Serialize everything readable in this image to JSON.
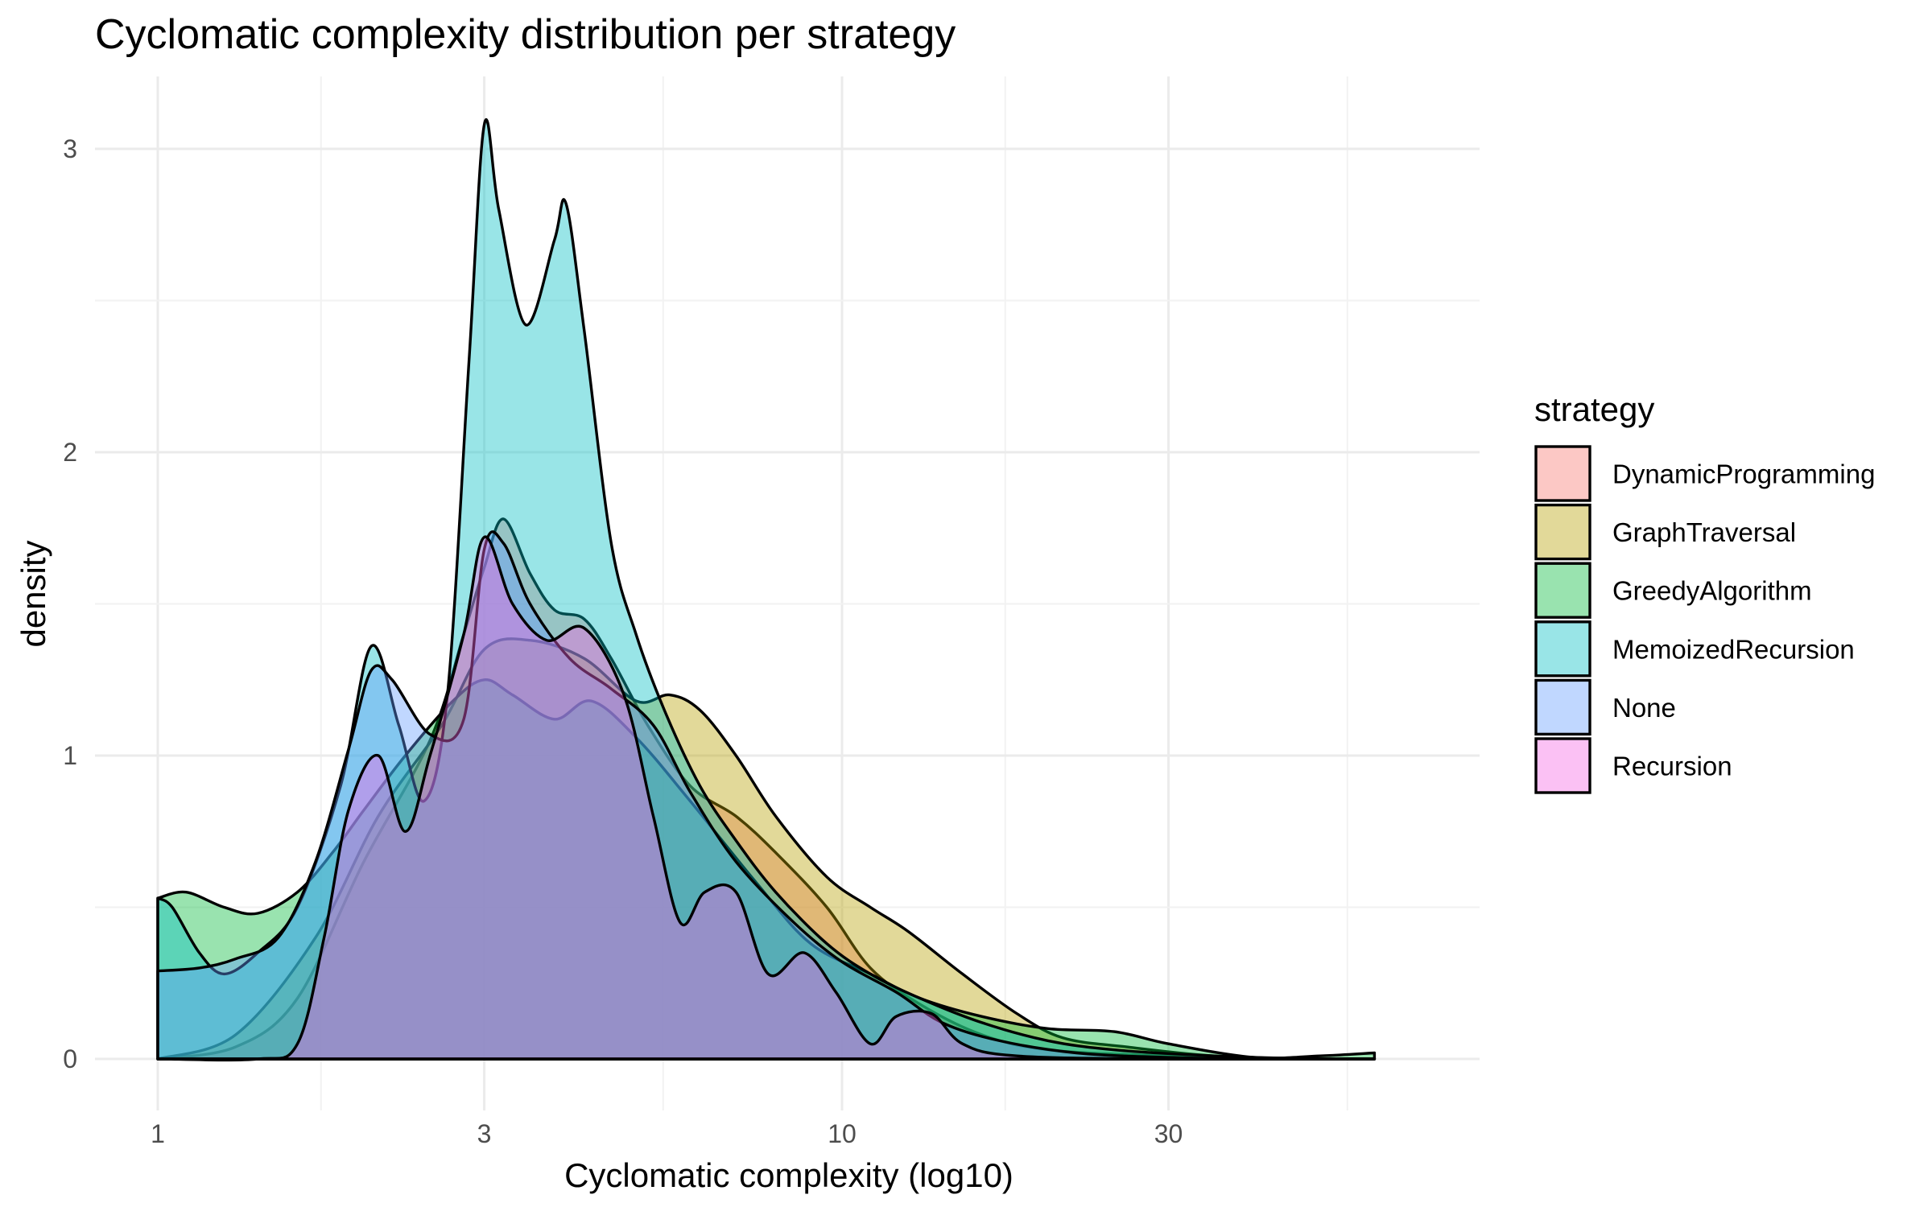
{
  "chart_data": {
    "type": "area",
    "subtype": "density",
    "title": "Cyclomatic complexity distribution per strategy",
    "xlabel": "Cyclomatic complexity (log10)",
    "ylabel": "density",
    "x_scale": "log10",
    "xlim": [
      1,
      60
    ],
    "ylim": [
      0,
      3.2
    ],
    "x_ticks": [
      1,
      3,
      10,
      30
    ],
    "x_tick_labels": [
      "1",
      "3",
      "10",
      "30"
    ],
    "y_ticks": [
      0,
      1,
      2,
      3
    ],
    "y_tick_labels": [
      "0",
      "1",
      "2",
      "3"
    ],
    "grid": true,
    "legend": {
      "title": "strategy",
      "position": "right"
    },
    "series": [
      {
        "name": "DynamicProgramming",
        "color": "#F8766D",
        "points": [
          [
            1,
            0
          ],
          [
            1.3,
            0.04
          ],
          [
            1.6,
            0.2
          ],
          [
            2.0,
            0.65
          ],
          [
            2.5,
            1.05
          ],
          [
            2.8,
            1.4
          ],
          [
            3.0,
            1.62
          ],
          [
            3.2,
            1.78
          ],
          [
            3.5,
            1.6
          ],
          [
            3.8,
            1.48
          ],
          [
            4.2,
            1.45
          ],
          [
            4.6,
            1.32
          ],
          [
            5.2,
            1.1
          ],
          [
            6.0,
            0.9
          ],
          [
            7.0,
            0.8
          ],
          [
            8.0,
            0.68
          ],
          [
            9.5,
            0.5
          ],
          [
            11,
            0.3
          ],
          [
            13,
            0.18
          ],
          [
            16,
            0.08
          ],
          [
            20,
            0.03
          ],
          [
            30,
            0.01
          ],
          [
            45,
            0
          ],
          [
            60,
            0
          ]
        ]
      },
      {
        "name": "GraphTraversal",
        "color": "#B79F00",
        "points": [
          [
            1,
            0
          ],
          [
            1.3,
            0.08
          ],
          [
            1.7,
            0.4
          ],
          [
            2.1,
            0.8
          ],
          [
            2.6,
            1.1
          ],
          [
            3.0,
            1.35
          ],
          [
            3.5,
            1.38
          ],
          [
            4.2,
            1.32
          ],
          [
            5.0,
            1.18
          ],
          [
            5.6,
            1.2
          ],
          [
            6.2,
            1.15
          ],
          [
            7.0,
            1.0
          ],
          [
            8.0,
            0.8
          ],
          [
            9.5,
            0.6
          ],
          [
            11,
            0.5
          ],
          [
            12.5,
            0.42
          ],
          [
            15,
            0.28
          ],
          [
            18,
            0.15
          ],
          [
            21,
            0.07
          ],
          [
            26,
            0.04
          ],
          [
            35,
            0.01
          ],
          [
            50,
            0
          ],
          [
            60,
            0
          ]
        ]
      },
      {
        "name": "GreedyAlgorithm",
        "color": "#00BA38",
        "points": [
          [
            1,
            0.53
          ],
          [
            1.1,
            0.55
          ],
          [
            1.25,
            0.5
          ],
          [
            1.4,
            0.48
          ],
          [
            1.6,
            0.55
          ],
          [
            1.8,
            0.68
          ],
          [
            2.0,
            0.82
          ],
          [
            2.3,
            1.0
          ],
          [
            2.7,
            1.18
          ],
          [
            3.0,
            1.25
          ],
          [
            3.3,
            1.2
          ],
          [
            3.8,
            1.12
          ],
          [
            4.3,
            1.18
          ],
          [
            5.0,
            1.06
          ],
          [
            6.0,
            0.85
          ],
          [
            7.5,
            0.58
          ],
          [
            9.0,
            0.38
          ],
          [
            11,
            0.28
          ],
          [
            13,
            0.2
          ],
          [
            16,
            0.14
          ],
          [
            20,
            0.1
          ],
          [
            25,
            0.09
          ],
          [
            30,
            0.05
          ],
          [
            40,
            0.005
          ],
          [
            50,
            0.01
          ],
          [
            60,
            0.02
          ]
        ]
      },
      {
        "name": "MemoizedRecursion",
        "color": "#00BFC4",
        "points": [
          [
            1,
            0.53
          ],
          [
            1.05,
            0.5
          ],
          [
            1.15,
            0.35
          ],
          [
            1.25,
            0.28
          ],
          [
            1.4,
            0.35
          ],
          [
            1.6,
            0.5
          ],
          [
            1.85,
            0.9
          ],
          [
            2.05,
            1.36
          ],
          [
            2.25,
            1.1
          ],
          [
            2.45,
            0.85
          ],
          [
            2.65,
            1.2
          ],
          [
            2.85,
            2.3
          ],
          [
            3.0,
            3.08
          ],
          [
            3.15,
            2.8
          ],
          [
            3.45,
            2.42
          ],
          [
            3.8,
            2.7
          ],
          [
            3.95,
            2.82
          ],
          [
            4.2,
            2.4
          ],
          [
            4.6,
            1.7
          ],
          [
            5.0,
            1.4
          ],
          [
            5.5,
            1.15
          ],
          [
            6.2,
            0.9
          ],
          [
            7.0,
            0.72
          ],
          [
            8.0,
            0.55
          ],
          [
            9.5,
            0.38
          ],
          [
            11,
            0.28
          ],
          [
            13,
            0.2
          ],
          [
            16,
            0.12
          ],
          [
            20,
            0.06
          ],
          [
            25,
            0.03
          ],
          [
            35,
            0.01
          ],
          [
            50,
            0
          ],
          [
            60,
            0
          ]
        ]
      },
      {
        "name": "None",
        "color": "#619CFF",
        "points": [
          [
            1,
            0.29
          ],
          [
            1.15,
            0.3
          ],
          [
            1.3,
            0.33
          ],
          [
            1.5,
            0.4
          ],
          [
            1.7,
            0.65
          ],
          [
            1.9,
            1.02
          ],
          [
            2.05,
            1.28
          ],
          [
            2.2,
            1.25
          ],
          [
            2.5,
            1.07
          ],
          [
            2.8,
            1.12
          ],
          [
            3.0,
            1.68
          ],
          [
            3.2,
            1.7
          ],
          [
            3.5,
            1.5
          ],
          [
            4.0,
            1.32
          ],
          [
            4.6,
            1.22
          ],
          [
            5.3,
            1.1
          ],
          [
            6.0,
            0.88
          ],
          [
            7.0,
            0.65
          ],
          [
            8.5,
            0.45
          ],
          [
            10,
            0.32
          ],
          [
            12,
            0.22
          ],
          [
            14,
            0.12
          ],
          [
            17,
            0.06
          ],
          [
            22,
            0.02
          ],
          [
            30,
            0.005
          ],
          [
            45,
            0
          ],
          [
            60,
            0
          ]
        ]
      },
      {
        "name": "Recursion",
        "color": "#F564E3",
        "points": [
          [
            1,
            0
          ],
          [
            1.4,
            0
          ],
          [
            1.6,
            0.05
          ],
          [
            1.75,
            0.4
          ],
          [
            1.9,
            0.82
          ],
          [
            2.1,
            1.0
          ],
          [
            2.3,
            0.75
          ],
          [
            2.5,
            1.0
          ],
          [
            2.8,
            1.4
          ],
          [
            3.0,
            1.72
          ],
          [
            3.3,
            1.5
          ],
          [
            3.7,
            1.38
          ],
          [
            4.2,
            1.42
          ],
          [
            4.8,
            1.2
          ],
          [
            5.3,
            0.8
          ],
          [
            5.8,
            0.45
          ],
          [
            6.3,
            0.55
          ],
          [
            7.0,
            0.55
          ],
          [
            7.8,
            0.28
          ],
          [
            8.8,
            0.35
          ],
          [
            9.8,
            0.22
          ],
          [
            11,
            0.05
          ],
          [
            12,
            0.14
          ],
          [
            13.5,
            0.15
          ],
          [
            15,
            0.05
          ],
          [
            18,
            0.01
          ],
          [
            30,
            0
          ],
          [
            60,
            0
          ]
        ]
      }
    ]
  }
}
